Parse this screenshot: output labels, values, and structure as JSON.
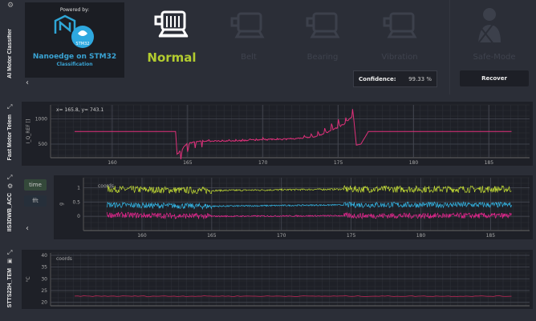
{
  "classifier": {
    "section_label": "AI Motor Classifier",
    "logo": {
      "powered_by": "Powered by:",
      "title": "Nanoedge on STM32",
      "subtitle": "Classification",
      "badge": "STM32"
    },
    "states": [
      {
        "label": "Normal",
        "active": true,
        "icon": "motor-icon"
      },
      {
        "label": "Belt",
        "active": false,
        "icon": "motor-belt-icon"
      },
      {
        "label": "Bearing",
        "active": false,
        "icon": "motor-bearing-icon"
      },
      {
        "label": "Vibration",
        "active": false,
        "icon": "motor-vibration-icon"
      },
      {
        "label": "Safe-Mode",
        "active": false,
        "icon": "technician-icon"
      }
    ],
    "confidence_label": "Confidence:",
    "confidence_value": "99.33 %",
    "recover_label": "Recover",
    "active_color": "#b3cc2f"
  },
  "panels": {
    "telemetry": {
      "label": "Fast Motor Telem",
      "cursor": "x= 165.8, y= 743.1"
    },
    "accel": {
      "label": "IIS3DWB_ACC",
      "time_label": "time",
      "fft_label": "fft",
      "legend": "coords"
    },
    "temp": {
      "label": "STTS22H_TEM",
      "legend": "coords"
    }
  },
  "chart_data": [
    {
      "type": "line",
      "ylabel": "I_Q_REF []",
      "xlim": [
        155.9,
        187.7
      ],
      "ylim": [
        230,
        1280
      ],
      "xticks": [
        160,
        165,
        170,
        175,
        180,
        185
      ],
      "yticks": [
        500,
        1000
      ],
      "grid": true,
      "series": [
        {
          "color": "#e0307a",
          "x": [
            157.5,
            164.2,
            164.3,
            165,
            166,
            168,
            170,
            172,
            173.5,
            174.5,
            175.5,
            176,
            176.2,
            176.5,
            177,
            186.5
          ],
          "y": [
            750,
            750,
            300,
            520,
            560,
            560,
            590,
            600,
            650,
            760,
            920,
            1080,
            480,
            500,
            750,
            750
          ]
        }
      ]
    },
    {
      "type": "line",
      "ylabel": "g",
      "xlim": [
        155.8,
        187.8
      ],
      "ylim": [
        -0.5,
        1.35
      ],
      "xticks": [
        160,
        165,
        170,
        175,
        180,
        185
      ],
      "yticks": [
        0,
        0.5,
        1.0
      ],
      "grid": true,
      "series": [
        {
          "color": "#c3dc34",
          "x": [
            157.5,
            165,
            174.5,
            186.5
          ],
          "y": [
            0.95,
            0.9,
            0.95,
            0.95
          ],
          "noise": [
            0.12,
            0.03,
            0.12
          ]
        },
        {
          "color": "#34b8e8",
          "x": [
            157.5,
            165,
            174.5,
            186.5
          ],
          "y": [
            0.4,
            0.35,
            0.4,
            0.4
          ],
          "noise": [
            0.1,
            0.025,
            0.1
          ]
        },
        {
          "color": "#e8258f",
          "x": [
            157.5,
            165,
            174.5,
            186.5
          ],
          "y": [
            0.05,
            0.0,
            0.02,
            0.02
          ],
          "noise": [
            0.1,
            0.025,
            0.1
          ]
        }
      ]
    },
    {
      "type": "line",
      "ylabel": "°C",
      "xlim": [
        155.9,
        187.7
      ],
      "ylim": [
        18.5,
        41
      ],
      "xticks": [],
      "yticks": [
        20,
        25,
        30,
        35,
        40
      ],
      "grid": true,
      "series": [
        {
          "color": "#a0284f",
          "x": [
            157.5,
            186.5
          ],
          "y": [
            22.6,
            22.6
          ]
        }
      ]
    }
  ]
}
